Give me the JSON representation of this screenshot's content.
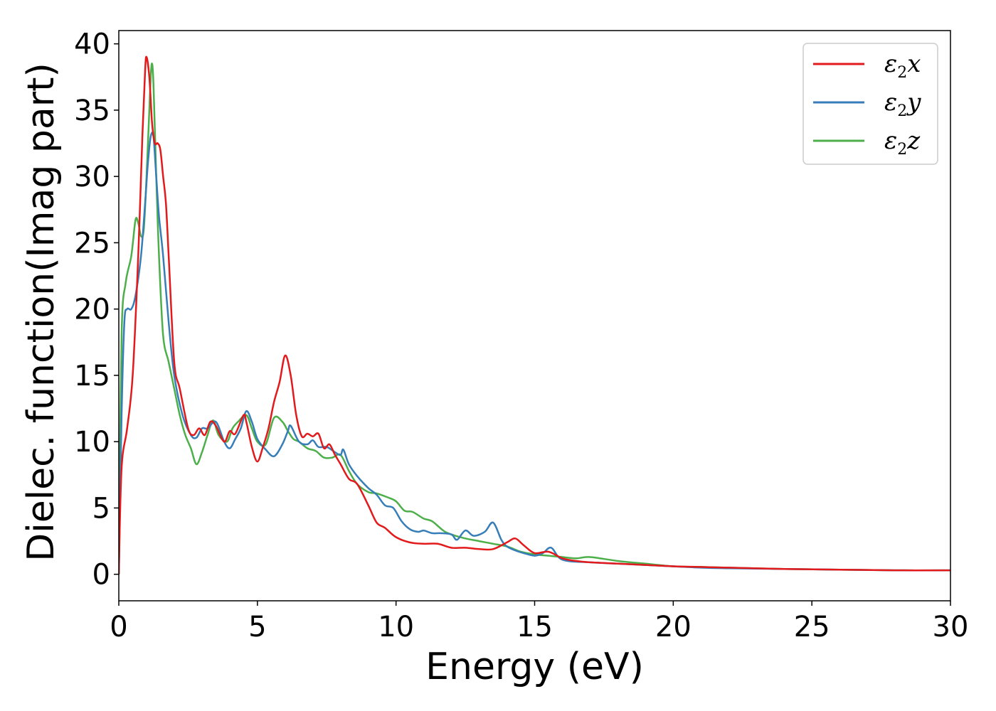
{
  "chart_data": {
    "type": "line",
    "title": "",
    "xlabel": "Energy (eV)",
    "ylabel": "Dielec. function(Imag part)",
    "xlim": [
      0,
      30
    ],
    "ylim": [
      -2,
      41
    ],
    "xticks": [
      0,
      5,
      10,
      15,
      20,
      25,
      30
    ],
    "yticks": [
      0,
      5,
      10,
      15,
      20,
      25,
      30,
      35,
      40
    ],
    "grid": false,
    "legend_position": "top-right",
    "series": [
      {
        "name": "ε₂x",
        "label_symbol": "ε",
        "label_subscript": "2",
        "label_suffix": "x",
        "color": "#e31a1c",
        "x": [
          0,
          0.1,
          0.3,
          0.5,
          0.7,
          0.85,
          0.95,
          1.0,
          1.1,
          1.2,
          1.3,
          1.4,
          1.5,
          1.6,
          1.7,
          1.8,
          2.0,
          2.2,
          2.5,
          2.7,
          2.9,
          3.1,
          3.3,
          3.5,
          3.8,
          4.0,
          4.2,
          4.5,
          4.6,
          4.8,
          5.0,
          5.2,
          5.4,
          5.6,
          5.8,
          6.0,
          6.2,
          6.4,
          6.6,
          6.8,
          7.0,
          7.2,
          7.4,
          7.6,
          7.8,
          8.0,
          8.3,
          8.6,
          9.0,
          9.3,
          9.6,
          10.0,
          10.5,
          11.0,
          11.5,
          12.0,
          12.5,
          13.0,
          13.5,
          14.0,
          14.3,
          14.6,
          15.0,
          15.5,
          16.0,
          16.5,
          17.0,
          18.0,
          19.0,
          20.0,
          21.0,
          22.0,
          24.0,
          26.0,
          28.0,
          30.0
        ],
        "y": [
          0,
          8,
          11,
          15,
          24,
          33,
          38,
          39,
          37.5,
          34,
          32.5,
          32.5,
          32,
          30,
          28,
          24,
          16,
          14,
          11,
          10.5,
          11,
          10.5,
          11.5,
          11.2,
          10,
          10.8,
          10.6,
          12,
          11.5,
          9.6,
          8.5,
          9.6,
          11,
          13,
          14.5,
          16.5,
          15,
          12,
          10.4,
          10.6,
          10.4,
          10.6,
          9.5,
          9.8,
          9,
          8.3,
          7.2,
          6.8,
          5.2,
          3.9,
          3.5,
          2.8,
          2.4,
          2.3,
          2.3,
          2.0,
          2.0,
          1.9,
          1.9,
          2.4,
          2.7,
          2.2,
          1.6,
          1.7,
          1.2,
          1.0,
          0.9,
          0.8,
          0.7,
          0.6,
          0.55,
          0.5,
          0.4,
          0.35,
          0.3,
          0.3
        ]
      },
      {
        "name": "ε₂y",
        "label_symbol": "ε",
        "label_subscript": "2",
        "label_suffix": "y",
        "color": "#377eb8",
        "x": [
          0,
          0.1,
          0.2,
          0.3,
          0.45,
          0.6,
          0.8,
          0.95,
          1.05,
          1.15,
          1.25,
          1.35,
          1.45,
          1.6,
          1.8,
          2.0,
          2.3,
          2.6,
          2.8,
          3.0,
          3.2,
          3.5,
          3.8,
          4.0,
          4.2,
          4.4,
          4.6,
          4.8,
          5.0,
          5.3,
          5.6,
          5.9,
          6.1,
          6.2,
          6.5,
          6.8,
          7.0,
          7.2,
          7.5,
          7.8,
          8.0,
          8.1,
          8.3,
          8.6,
          9.0,
          9.3,
          9.6,
          9.9,
          10.2,
          10.5,
          10.8,
          11.0,
          11.3,
          11.6,
          12.0,
          12.2,
          12.5,
          12.8,
          13.2,
          13.5,
          13.8,
          14.0,
          14.3,
          14.6,
          15.0,
          15.3,
          15.6,
          16.0,
          17.0,
          18.0,
          19.0,
          20.0,
          21.0,
          22.0,
          24.0,
          26.0,
          28.0,
          30.0
        ],
        "y": [
          0,
          12,
          19,
          20,
          20,
          21,
          24,
          28,
          31,
          33,
          33,
          30,
          27,
          24,
          19,
          15,
          12,
          10.5,
          10.3,
          11,
          11,
          11.5,
          10,
          9.5,
          10.2,
          11,
          12.3,
          11.5,
          10.2,
          9.4,
          8.9,
          9.8,
          10.8,
          11.2,
          10,
          9.8,
          10.1,
          9.6,
          9.6,
          9.2,
          9.0,
          9.4,
          8.3,
          7.4,
          6.5,
          6.0,
          5.2,
          5.0,
          4.0,
          3.4,
          3.2,
          3.3,
          3.1,
          3.1,
          3.0,
          2.6,
          3.3,
          2.9,
          3.2,
          3.9,
          2.6,
          2.1,
          1.8,
          1.6,
          1.4,
          1.6,
          2.0,
          1.1,
          0.9,
          0.8,
          0.7,
          0.6,
          0.5,
          0.45,
          0.4,
          0.35,
          0.3,
          0.3
        ]
      },
      {
        "name": "ε₂z",
        "label_symbol": "ε",
        "label_subscript": "2",
        "label_suffix": "z",
        "color": "#4daf4a",
        "x": [
          0,
          0.1,
          0.25,
          0.45,
          0.6,
          0.7,
          0.8,
          0.9,
          1.0,
          1.1,
          1.18,
          1.25,
          1.35,
          1.45,
          1.6,
          1.8,
          2.0,
          2.2,
          2.4,
          2.6,
          2.8,
          3.0,
          3.2,
          3.4,
          3.6,
          3.9,
          4.1,
          4.3,
          4.6,
          4.8,
          5.0,
          5.3,
          5.6,
          5.9,
          6.1,
          6.3,
          6.5,
          6.8,
          7.1,
          7.4,
          7.7,
          8.0,
          8.3,
          8.6,
          9.0,
          9.3,
          9.7,
          10.0,
          10.3,
          10.6,
          11.0,
          11.3,
          11.7,
          12.0,
          12.5,
          13.0,
          13.5,
          14.0,
          14.5,
          15.0,
          15.5,
          16.0,
          16.5,
          17.0,
          18.0,
          19.0,
          20.0,
          21.0,
          22.0,
          24.0,
          26.0,
          28.0,
          30.0
        ],
        "y": [
          0,
          18,
          22,
          24,
          26.7,
          26.5,
          25.5,
          26,
          30,
          35,
          38.4,
          37,
          30,
          24,
          18,
          16,
          14,
          12,
          10.5,
          9.5,
          8.3,
          9.2,
          10.5,
          11.6,
          10.5,
          10,
          11,
          11.5,
          12,
          11,
          10,
          9.8,
          11.8,
          11.5,
          10.8,
          10.2,
          10,
          9.5,
          9.3,
          8.8,
          8.8,
          9,
          7.8,
          6.8,
          6.2,
          6.1,
          5.8,
          5.5,
          4.8,
          4.7,
          4.2,
          4.0,
          3.3,
          3.0,
          2.7,
          2.5,
          2.3,
          2.1,
          1.7,
          1.5,
          1.4,
          1.3,
          1.2,
          1.3,
          1.0,
          0.8,
          0.6,
          0.55,
          0.5,
          0.4,
          0.35,
          0.3,
          0.3
        ]
      }
    ]
  }
}
